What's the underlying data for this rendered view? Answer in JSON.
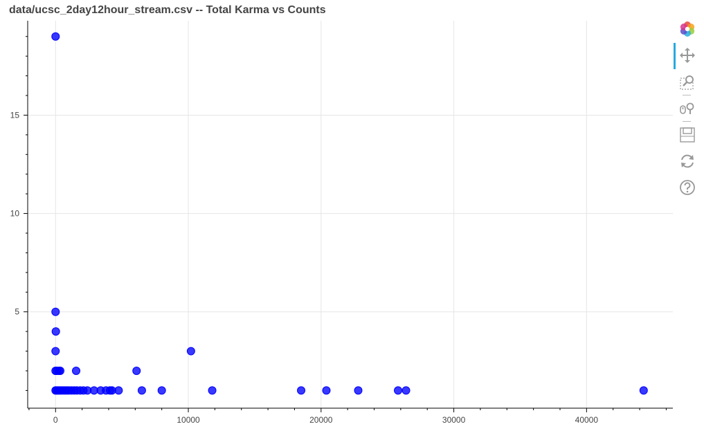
{
  "title": "data/ucsc_2day12hour_stream.csv -- Total Karma vs Counts",
  "toolbar": {
    "items": [
      {
        "name": "bokeh-logo-icon",
        "active": false
      },
      {
        "name": "pan-tool-icon",
        "active": true
      },
      {
        "name": "box-zoom-tool-icon",
        "active": false
      },
      {
        "name": "wheel-zoom-tool-icon",
        "active": false
      },
      {
        "name": "save-tool-icon",
        "active": false
      },
      {
        "name": "reset-tool-icon",
        "active": false
      },
      {
        "name": "help-tool-icon",
        "active": false
      }
    ]
  },
  "chart_data": {
    "type": "scatter",
    "title": "data/ucsc_2day12hour_stream.csv -- Total Karma vs Counts",
    "xlabel": "",
    "ylabel": "",
    "xlim": [
      -2100,
      46500
    ],
    "ylim": [
      0.1,
      19.8
    ],
    "xticks": [
      0,
      10000,
      20000,
      30000,
      40000
    ],
    "xtick_labels": [
      "0",
      "10000",
      "20000",
      "30000",
      "40000"
    ],
    "yticks": [
      5,
      10,
      15
    ],
    "ytick_labels": [
      "5",
      "10",
      "15"
    ],
    "grid": true,
    "marker_color": "#0000ff",
    "points": [
      {
        "x": 0,
        "y": 19
      },
      {
        "x": 0,
        "y": 5
      },
      {
        "x": 20,
        "y": 4
      },
      {
        "x": 0,
        "y": 3
      },
      {
        "x": 0,
        "y": 2
      },
      {
        "x": 100,
        "y": 2
      },
      {
        "x": 250,
        "y": 2
      },
      {
        "x": 350,
        "y": 2
      },
      {
        "x": 1550,
        "y": 2
      },
      {
        "x": 6100,
        "y": 2
      },
      {
        "x": 10200,
        "y": 3
      },
      {
        "x": 0,
        "y": 1
      },
      {
        "x": 80,
        "y": 1
      },
      {
        "x": 180,
        "y": 1
      },
      {
        "x": 280,
        "y": 1
      },
      {
        "x": 400,
        "y": 1
      },
      {
        "x": 550,
        "y": 1
      },
      {
        "x": 700,
        "y": 1
      },
      {
        "x": 850,
        "y": 1
      },
      {
        "x": 1000,
        "y": 1
      },
      {
        "x": 1200,
        "y": 1
      },
      {
        "x": 1400,
        "y": 1
      },
      {
        "x": 1600,
        "y": 1
      },
      {
        "x": 1850,
        "y": 1
      },
      {
        "x": 2100,
        "y": 1
      },
      {
        "x": 2400,
        "y": 1
      },
      {
        "x": 2900,
        "y": 1
      },
      {
        "x": 3400,
        "y": 1
      },
      {
        "x": 3800,
        "y": 1
      },
      {
        "x": 4100,
        "y": 1
      },
      {
        "x": 4250,
        "y": 1
      },
      {
        "x": 4750,
        "y": 1
      },
      {
        "x": 6500,
        "y": 1
      },
      {
        "x": 8000,
        "y": 1
      },
      {
        "x": 11800,
        "y": 1
      },
      {
        "x": 18500,
        "y": 1
      },
      {
        "x": 20400,
        "y": 1
      },
      {
        "x": 22800,
        "y": 1
      },
      {
        "x": 25800,
        "y": 1
      },
      {
        "x": 26400,
        "y": 1
      },
      {
        "x": 44300,
        "y": 1
      }
    ]
  }
}
